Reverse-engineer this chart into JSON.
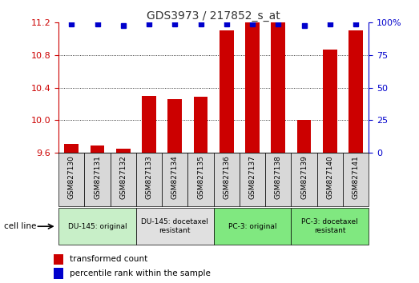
{
  "title": "GDS3973 / 217852_s_at",
  "samples": [
    "GSM827130",
    "GSM827131",
    "GSM827132",
    "GSM827133",
    "GSM827134",
    "GSM827135",
    "GSM827136",
    "GSM827137",
    "GSM827138",
    "GSM827139",
    "GSM827140",
    "GSM827141"
  ],
  "red_values": [
    9.71,
    9.69,
    9.65,
    10.3,
    10.26,
    10.29,
    11.1,
    11.2,
    11.2,
    10.0,
    10.87,
    11.1
  ],
  "blue_values": [
    99,
    99,
    98,
    99,
    99,
    99,
    99,
    99,
    99,
    98,
    99,
    99
  ],
  "ylim_left": [
    9.6,
    11.2
  ],
  "ylim_right": [
    0,
    100
  ],
  "yticks_left": [
    9.6,
    10.0,
    10.4,
    10.8,
    11.2
  ],
  "yticks_right": [
    0,
    25,
    50,
    75,
    100
  ],
  "groups": [
    {
      "label": "DU-145: original",
      "start": 0,
      "end": 3,
      "color": "#c8efc8"
    },
    {
      "label": "DU-145: docetaxel\nresistant",
      "start": 3,
      "end": 6,
      "color": "#e0e0e0"
    },
    {
      "label": "PC-3: original",
      "start": 6,
      "end": 9,
      "color": "#80e880"
    },
    {
      "label": "PC-3: docetaxel\nresistant",
      "start": 9,
      "end": 12,
      "color": "#80e880"
    }
  ],
  "cell_line_label": "cell line",
  "legend_red": "transformed count",
  "legend_blue": "percentile rank within the sample",
  "bar_color": "#cc0000",
  "dot_color": "#0000cc",
  "sample_bg_color": "#d8d8d8"
}
